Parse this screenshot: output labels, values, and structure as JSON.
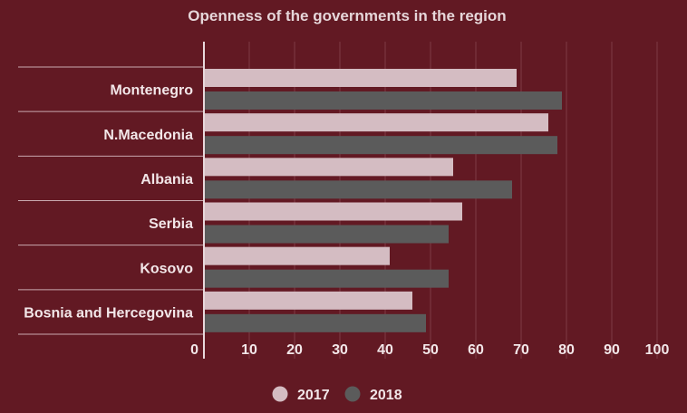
{
  "chart_data": {
    "type": "bar",
    "orientation": "horizontal",
    "title": "Openness of the governments in the region",
    "categories": [
      "Montenegro",
      "N.Macedonia",
      "Albania",
      "Serbia",
      "Kosovo",
      "Bosnia and Hercegovina"
    ],
    "series": [
      {
        "name": "2017",
        "color": "#d4bcc2",
        "values": [
          69,
          76,
          55,
          57,
          41,
          46
        ]
      },
      {
        "name": "2018",
        "color": "#5b5b5b",
        "values": [
          79,
          78,
          68,
          54,
          54,
          49
        ]
      }
    ],
    "xlim": [
      0,
      100
    ],
    "xticks": [
      "0",
      "10",
      "20",
      "30",
      "40",
      "50",
      "60",
      "70",
      "80",
      "90",
      "100"
    ],
    "grid": true,
    "legend_position": "bottom"
  }
}
